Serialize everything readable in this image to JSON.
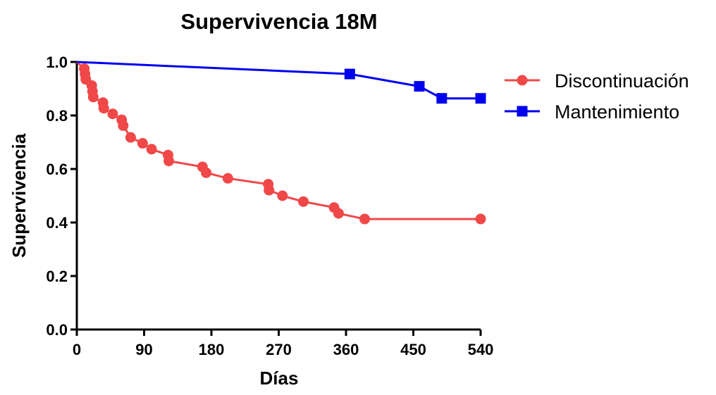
{
  "chart_data": {
    "type": "line",
    "title": "Supervivencia 18M",
    "xlabel": "Días",
    "ylabel": "Supervivencia",
    "xlim": [
      0,
      540
    ],
    "ylim": [
      0.0,
      1.0
    ],
    "x_ticks": [
      0,
      90,
      180,
      270,
      360,
      450,
      540
    ],
    "x_tick_labels": [
      "0",
      "90",
      "180",
      "270",
      "360",
      "450",
      "540"
    ],
    "y_ticks": [
      0.0,
      0.2,
      0.4,
      0.6,
      0.8,
      1.0
    ],
    "y_tick_labels": [
      "0.0",
      "0.2",
      "0.4",
      "0.6",
      "0.8",
      "1.0"
    ],
    "grid": false,
    "legend_position": "right",
    "series": [
      {
        "name": "Discontinuación",
        "color": "#f04848",
        "marker": "circle",
        "x": [
          0,
          10,
          11,
          12,
          20,
          21,
          22,
          35,
          36,
          48,
          60,
          62,
          72,
          88,
          100,
          122,
          123,
          168,
          173,
          202,
          256,
          257,
          275,
          303,
          344,
          350,
          385,
          540
        ],
        "y": [
          1.0,
          0.975,
          0.955,
          0.935,
          0.912,
          0.89,
          0.869,
          0.848,
          0.827,
          0.806,
          0.784,
          0.762,
          0.718,
          0.696,
          0.674,
          0.652,
          0.63,
          0.608,
          0.586,
          0.565,
          0.543,
          0.521,
          0.5,
          0.478,
          0.456,
          0.434,
          0.413,
          0.413
        ],
        "marker_x": [
          10,
          11,
          12,
          20,
          21,
          22,
          35,
          36,
          48,
          60,
          62,
          72,
          88,
          100,
          122,
          123,
          168,
          173,
          202,
          256,
          257,
          275,
          303,
          344,
          350,
          385,
          540
        ],
        "marker_y": [
          0.975,
          0.955,
          0.935,
          0.912,
          0.89,
          0.869,
          0.848,
          0.827,
          0.806,
          0.784,
          0.762,
          0.718,
          0.696,
          0.674,
          0.652,
          0.63,
          0.608,
          0.586,
          0.565,
          0.543,
          0.521,
          0.5,
          0.478,
          0.456,
          0.434,
          0.413,
          0.413
        ]
      },
      {
        "name": "Mantenimiento",
        "color": "#0000ee",
        "marker": "square",
        "x": [
          0,
          365,
          458,
          488,
          540
        ],
        "y": [
          1.0,
          0.955,
          0.909,
          0.864,
          0.864
        ],
        "marker_x": [
          365,
          458,
          488,
          540
        ],
        "marker_y": [
          0.955,
          0.909,
          0.864,
          0.864
        ]
      }
    ]
  }
}
